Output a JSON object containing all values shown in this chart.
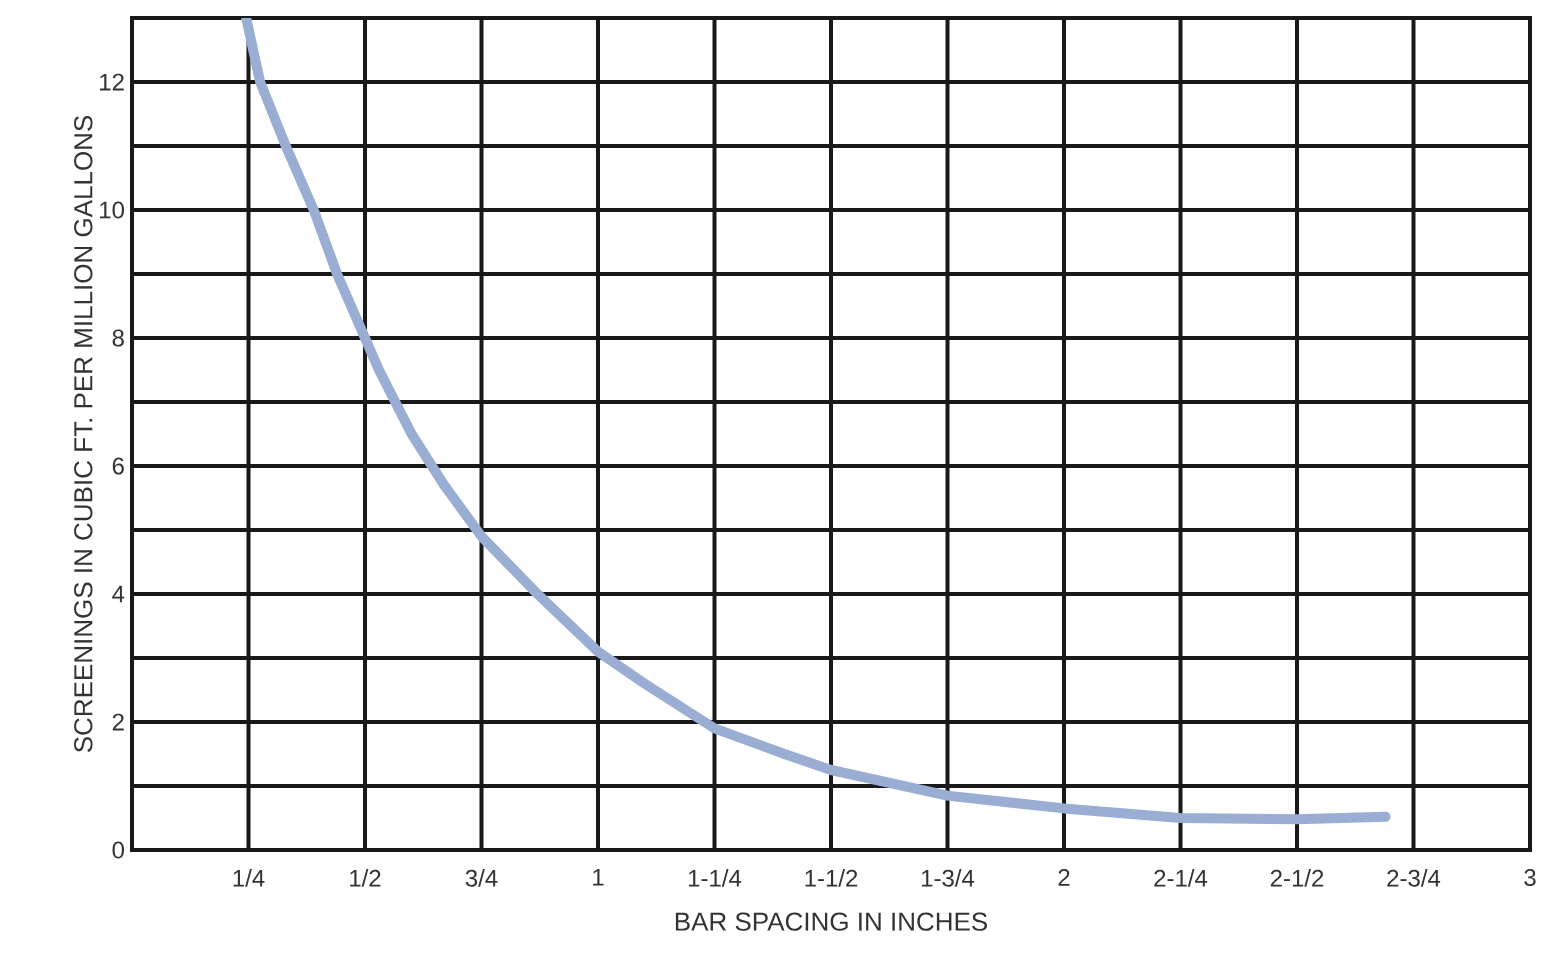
{
  "chart_data": {
    "type": "line",
    "xlabel": "BAR SPACING IN INCHES",
    "ylabel": "SCREENINGS IN CUBIC FT. PER MILLION GALLONS",
    "x": [
      0.245,
      0.275,
      0.33,
      0.39,
      0.44,
      0.5,
      0.53,
      0.6,
      0.67,
      0.75,
      0.87,
      1,
      1.1,
      1.25,
      1.4,
      1.5,
      1.75,
      2,
      2.25,
      2.5,
      2.69
    ],
    "series": [
      {
        "color": "#9aaed4",
        "values": [
          13,
          12,
          11,
          10,
          9,
          8,
          7.5,
          6.5,
          5.7,
          4.9,
          4,
          3.1,
          2.6,
          1.9,
          1.5,
          1.25,
          0.85,
          0.65,
          0.5,
          0.48,
          0.52
        ]
      }
    ],
    "xlim": [
      0,
      3
    ],
    "ylim": [
      0,
      13
    ],
    "xticks": [
      {
        "value": 0,
        "label": null
      },
      {
        "value": 0.25,
        "label": "1/4"
      },
      {
        "value": 0.5,
        "label": "1/2"
      },
      {
        "value": 0.75,
        "label": "3/4"
      },
      1,
      {
        "value": 1.25,
        "label": "1-1/4"
      },
      {
        "value": 1.5,
        "label": "1-1/2"
      },
      {
        "value": 1.75,
        "label": "1-3/4"
      },
      2,
      {
        "value": 2.25,
        "label": "2-1/4"
      },
      {
        "value": 2.5,
        "label": "2-1/2"
      },
      {
        "value": 2.75,
        "label": "2-3/4"
      },
      3
    ],
    "yticks": [
      0,
      {
        "value": 1,
        "label": null
      },
      2,
      {
        "value": 3,
        "label": null
      },
      4,
      {
        "value": 5,
        "label": null
      },
      6,
      {
        "value": 7,
        "label": null
      },
      8,
      {
        "value": 9,
        "label": null
      },
      10,
      {
        "value": 11,
        "label": null
      },
      12,
      {
        "value": 13,
        "label": null
      }
    ],
    "grid": true,
    "marker": "none",
    "line_style": "solid"
  }
}
